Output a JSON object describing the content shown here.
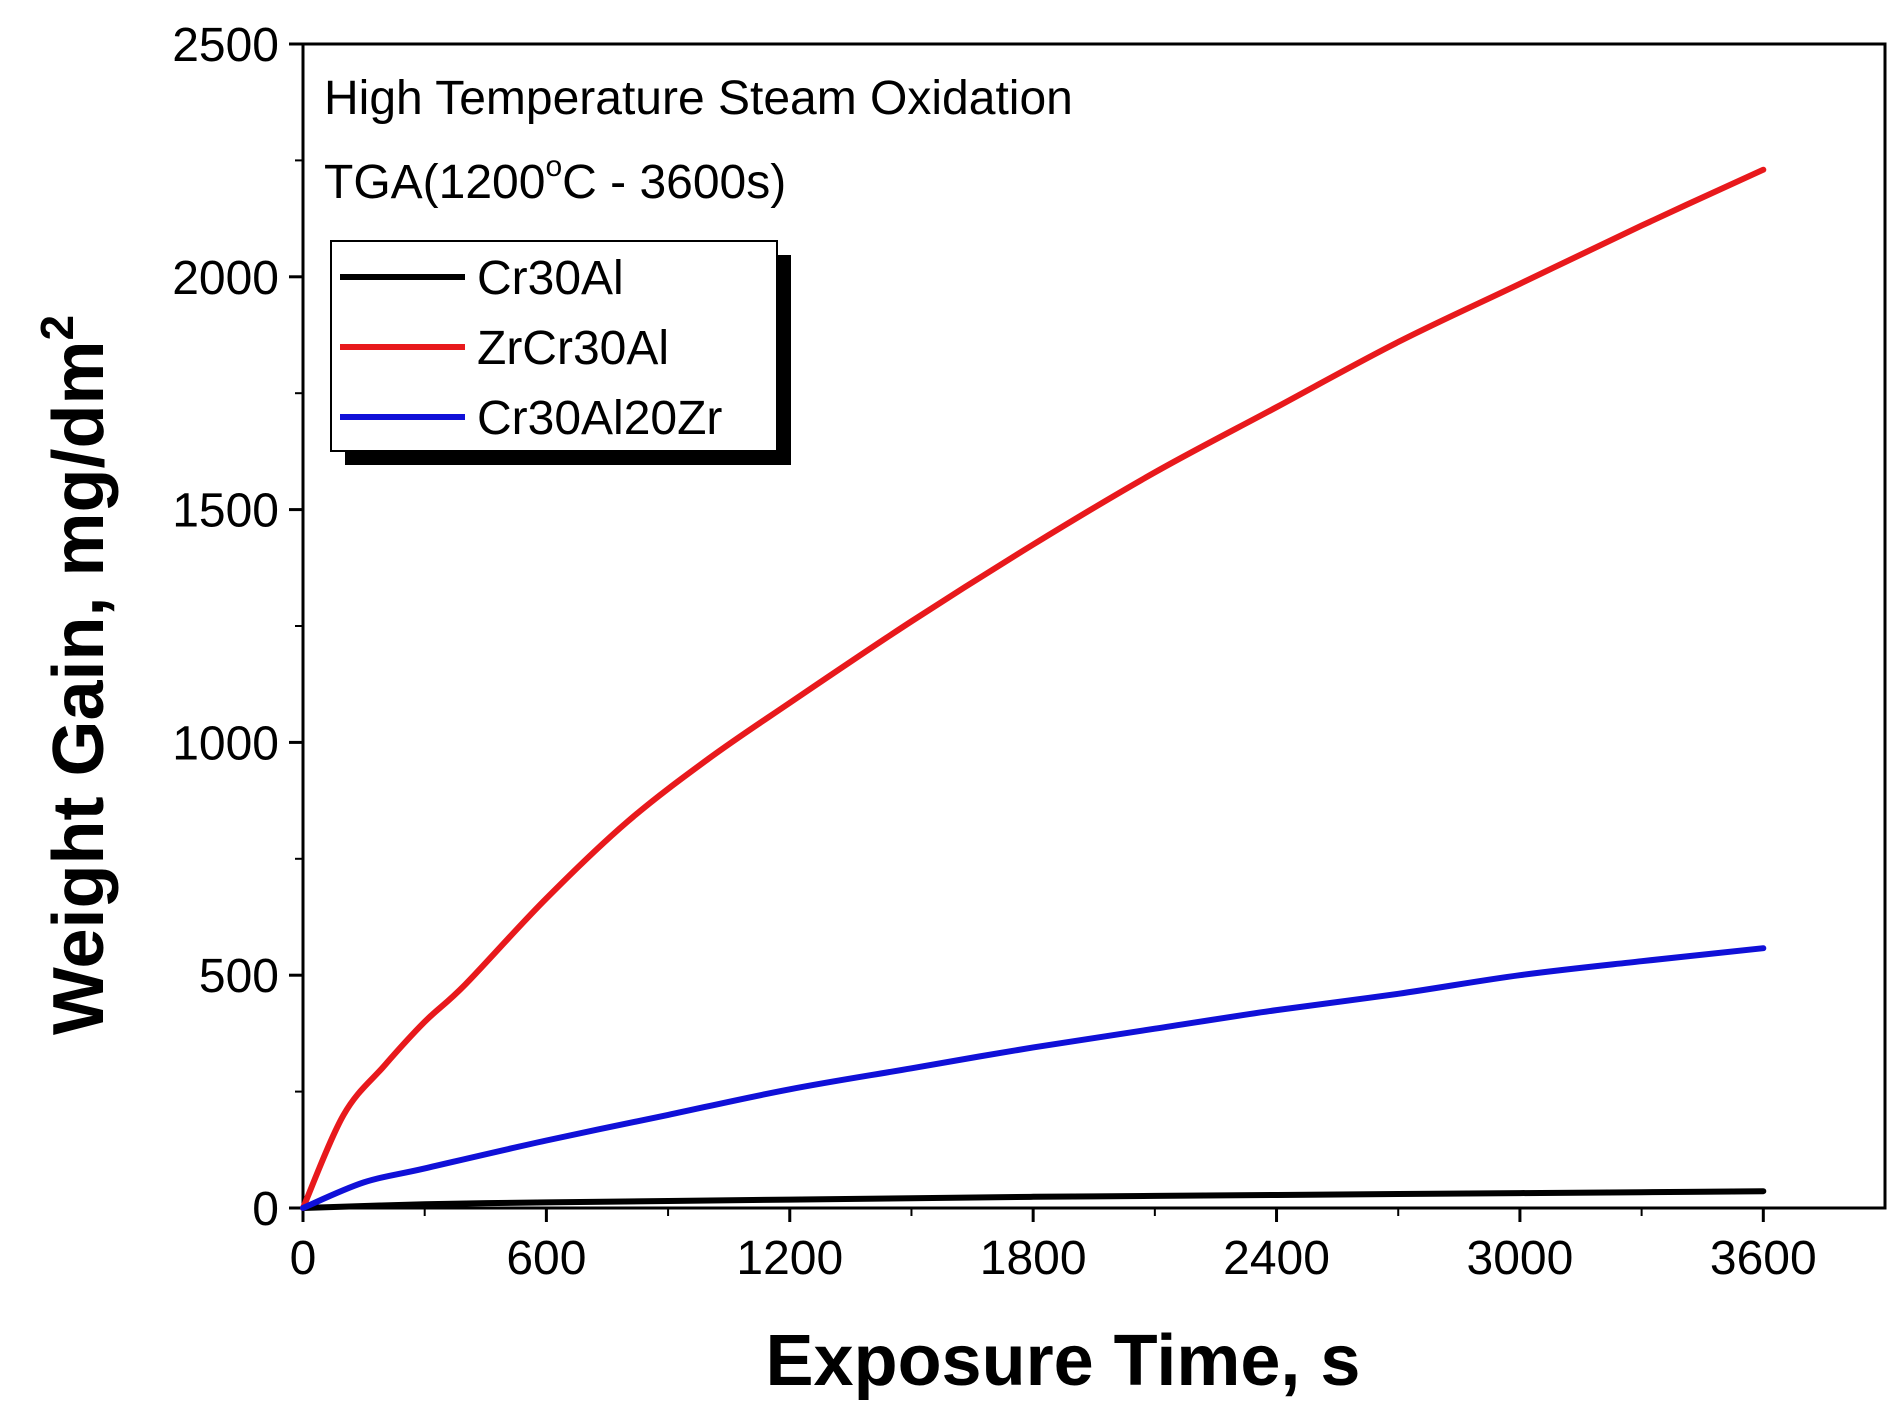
{
  "chart_data": {
    "type": "line",
    "title": "",
    "annotations": [
      "High Temperature Steam Oxidation",
      "TGA(1200",
      "o",
      "C - 3600s)"
    ],
    "xlabel": "Exposure Time, s",
    "ylabel": "Weight Gain, mg/dm",
    "ylabel_superscript": "2",
    "xlim": [
      0,
      3900
    ],
    "ylim": [
      0,
      2500
    ],
    "xticks": [
      0,
      600,
      1200,
      1800,
      2400,
      3000,
      3600
    ],
    "xtick_labels": [
      "0",
      "600",
      "1200",
      "1800",
      "2400",
      "3000",
      "3600"
    ],
    "yticks": [
      0,
      500,
      1000,
      1500,
      2000,
      2500
    ],
    "ytick_labels": [
      "0",
      "500",
      "1000",
      "1500",
      "2000",
      "2500"
    ],
    "legend_position": "upper-left",
    "series": [
      {
        "name": "Cr30Al",
        "color": "#000000",
        "x": [
          0,
          300,
          600,
          900,
          1200,
          1500,
          1800,
          2100,
          2400,
          2700,
          3000,
          3300,
          3600
        ],
        "y": [
          0,
          8,
          12,
          15,
          18,
          21,
          24,
          26,
          28,
          30,
          32,
          34,
          36
        ]
      },
      {
        "name": "ZrCr30Al",
        "color": "#e8191c",
        "x": [
          0,
          100,
          200,
          300,
          400,
          600,
          800,
          1000,
          1200,
          1500,
          1800,
          2100,
          2400,
          2700,
          3000,
          3300,
          3600
        ],
        "y": [
          0,
          200,
          305,
          400,
          480,
          665,
          830,
          965,
          1085,
          1260,
          1425,
          1580,
          1720,
          1860,
          1985,
          2110,
          2230
        ]
      },
      {
        "name": "Cr30Al20Zr",
        "color": "#1010d8",
        "x": [
          0,
          150,
          300,
          600,
          900,
          1200,
          1500,
          1800,
          2100,
          2400,
          2700,
          3000,
          3300,
          3600
        ],
        "y": [
          0,
          55,
          85,
          145,
          200,
          255,
          300,
          345,
          385,
          425,
          460,
          500,
          530,
          558
        ]
      }
    ]
  }
}
